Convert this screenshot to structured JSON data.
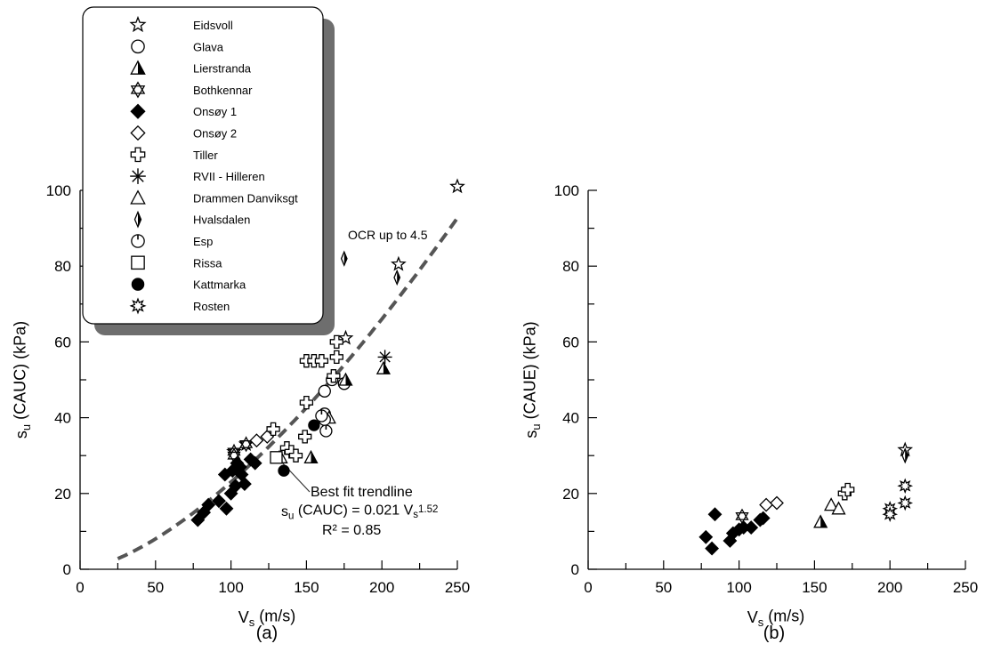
{
  "legend": {
    "entries": [
      {
        "name": "Eidsvoll",
        "symbol": "star-open"
      },
      {
        "name": "Glava",
        "symbol": "circle-open"
      },
      {
        "name": "Lierstranda",
        "symbol": "triangle-half"
      },
      {
        "name": "Bothkennar",
        "symbol": "hexagram-open"
      },
      {
        "name": "Onsøy 1",
        "symbol": "diamond-filled"
      },
      {
        "name": "Onsøy 2",
        "symbol": "diamond-open"
      },
      {
        "name": "Tiller",
        "symbol": "cross-open"
      },
      {
        "name": "RVII - Hilleren",
        "symbol": "asterisk"
      },
      {
        "name": "Drammen Danviksgt",
        "symbol": "triangle-open"
      },
      {
        "name": "Hvalsdalen",
        "symbol": "thin-diamond-half"
      },
      {
        "name": "Esp",
        "symbol": "circle-tick"
      },
      {
        "name": "Rissa",
        "symbol": "square-open"
      },
      {
        "name": "Kattmarka",
        "symbol": "circle-filled"
      },
      {
        "name": "Rosten",
        "symbol": "burst-open"
      }
    ]
  },
  "chart_data": [
    {
      "type": "scatter",
      "panel_label": "(a)",
      "xlabel": {
        "main": "V",
        "sub": "s",
        "rest": " (m/s)"
      },
      "ylabel": {
        "main": "s",
        "sub": "u",
        "rest": " (CAUC) (kPa)"
      },
      "xlim": [
        0,
        250
      ],
      "ylim": [
        0,
        100
      ],
      "xticks": [
        "0",
        "50",
        "100",
        "150",
        "200",
        "250"
      ],
      "yticks": [
        "0",
        "20",
        "40",
        "60",
        "80",
        "100"
      ],
      "grid": false,
      "legend_placement": "top-left",
      "trendline": {
        "a": 0.021,
        "b": 1.52,
        "x_range": [
          25,
          250
        ],
        "style": "dashed"
      },
      "annotations": {
        "ocr": "OCR up to 4.5",
        "best_fit": "Best fit trendline",
        "eq_pre": "s",
        "eq_sub": "u",
        "eq_mid": " (CAUC) = 0.021 V",
        "eq_sub2": "s",
        "eq_sup": "1.52",
        "r2": "R² = 0.85"
      },
      "series": [
        {
          "name": "Eidsvoll",
          "symbol": "star-open",
          "points": [
            [
              102,
              31
            ],
            [
              110,
              33
            ],
            [
              176,
              61
            ],
            [
              211,
              80.5
            ],
            [
              250,
              101
            ]
          ]
        },
        {
          "name": "Glava",
          "symbol": "circle-open",
          "points": [
            [
              162,
              47
            ],
            [
              167,
              50
            ],
            [
              175,
              49
            ],
            [
              162,
              41
            ]
          ]
        },
        {
          "name": "Lierstranda",
          "symbol": "triangle-half",
          "points": [
            [
              132,
              29.5
            ],
            [
              153,
              29.5
            ],
            [
              176,
              50
            ],
            [
              201,
              53
            ]
          ]
        },
        {
          "name": "Bothkennar",
          "symbol": "hexagram-open",
          "points": [
            [
              102,
              31
            ],
            [
              110,
              33
            ],
            [
              102,
              30
            ]
          ]
        },
        {
          "name": "Onsøy 1",
          "symbol": "diamond-filled",
          "points": [
            [
              78,
              13
            ],
            [
              82,
              15
            ],
            [
              85,
              17
            ],
            [
              92,
              18
            ],
            [
              96,
              25
            ],
            [
              97,
              16
            ],
            [
              100,
              20
            ],
            [
              101,
              26
            ],
            [
              103,
              22
            ],
            [
              104,
              28
            ],
            [
              106,
              27
            ],
            [
              107,
              25
            ],
            [
              109,
              22.5
            ],
            [
              113,
              29
            ],
            [
              116,
              28
            ]
          ]
        },
        {
          "name": "Onsøy 2",
          "symbol": "diamond-open",
          "points": [
            [
              117,
              34
            ],
            [
              124,
              35
            ]
          ]
        },
        {
          "name": "Tiller",
          "symbol": "cross-open",
          "points": [
            [
              128,
              37
            ],
            [
              137,
              32
            ],
            [
              140,
              31
            ],
            [
              143,
              30
            ],
            [
              149,
              35
            ],
            [
              150,
              44
            ],
            [
              150,
              55
            ],
            [
              155,
              55
            ],
            [
              160,
              55
            ],
            [
              170,
              56
            ],
            [
              170,
              60
            ],
            [
              168,
              51
            ]
          ]
        },
        {
          "name": "RVII - Hilleren",
          "symbol": "asterisk",
          "points": [
            [
              202,
              56
            ]
          ]
        },
        {
          "name": "Drammen Danviksgt",
          "symbol": "triangle-open",
          "points": [
            [
              133,
              29.5
            ],
            [
              165,
              40
            ]
          ]
        },
        {
          "name": "Hvalsdalen",
          "symbol": "thin-diamond-half",
          "points": [
            [
              175,
              82
            ],
            [
              210,
              77
            ]
          ]
        },
        {
          "name": "Esp",
          "symbol": "circle-tick",
          "points": [
            [
              162,
              39.5
            ],
            [
              163,
              36.5
            ],
            [
              160,
              40.5
            ]
          ]
        },
        {
          "name": "Rissa",
          "symbol": "square-open",
          "points": [
            [
              130,
              29.5
            ]
          ]
        },
        {
          "name": "Kattmarka",
          "symbol": "circle-filled",
          "points": [
            [
              135,
              26
            ],
            [
              155,
              38
            ]
          ]
        }
      ]
    },
    {
      "type": "scatter",
      "panel_label": "(b)",
      "xlabel": {
        "main": "V",
        "sub": "s",
        "rest": " (m/s)"
      },
      "ylabel": {
        "main": "s",
        "sub": "u",
        "rest": " (CAUE) (kPa)"
      },
      "xlim": [
        0,
        250
      ],
      "ylim": [
        0,
        100
      ],
      "xticks": [
        "0",
        "50",
        "100",
        "150",
        "200",
        "250"
      ],
      "yticks": [
        "0",
        "20",
        "40",
        "60",
        "80",
        "100"
      ],
      "grid": false,
      "series": [
        {
          "name": "Eidsvoll",
          "symbol": "star-open",
          "points": [
            [
              210,
              31.5
            ]
          ]
        },
        {
          "name": "Bothkennar",
          "symbol": "hexagram-open",
          "points": [
            [
              102,
              14
            ]
          ]
        },
        {
          "name": "Onsøy 1",
          "symbol": "diamond-filled",
          "points": [
            [
              78,
              8.5
            ],
            [
              82,
              5.5
            ],
            [
              84,
              14.5
            ],
            [
              94,
              7.5
            ],
            [
              96,
              9.5
            ],
            [
              100,
              10.5
            ],
            [
              103,
              11
            ],
            [
              108,
              11
            ],
            [
              114,
              13
            ],
            [
              116,
              13.5
            ]
          ]
        },
        {
          "name": "Onsøy 2",
          "symbol": "diamond-open",
          "points": [
            [
              118,
              17
            ],
            [
              125,
              17.5
            ]
          ]
        },
        {
          "name": "Lierstranda",
          "symbol": "triangle-half",
          "points": [
            [
              154,
              12.5
            ]
          ]
        },
        {
          "name": "Drammen Danviksgt",
          "symbol": "triangle-open",
          "points": [
            [
              161,
              17
            ],
            [
              166,
              16
            ]
          ]
        },
        {
          "name": "Tiller",
          "symbol": "cross-open",
          "points": [
            [
              170,
              20
            ],
            [
              172,
              21
            ]
          ]
        },
        {
          "name": "Hvalsdalen",
          "symbol": "thin-diamond-half",
          "points": [
            [
              210,
              30
            ]
          ]
        },
        {
          "name": "Rosten",
          "symbol": "burst-open",
          "points": [
            [
              200,
              16
            ],
            [
              200,
              14.5
            ],
            [
              210,
              22
            ],
            [
              210,
              17.5
            ]
          ]
        }
      ]
    }
  ]
}
